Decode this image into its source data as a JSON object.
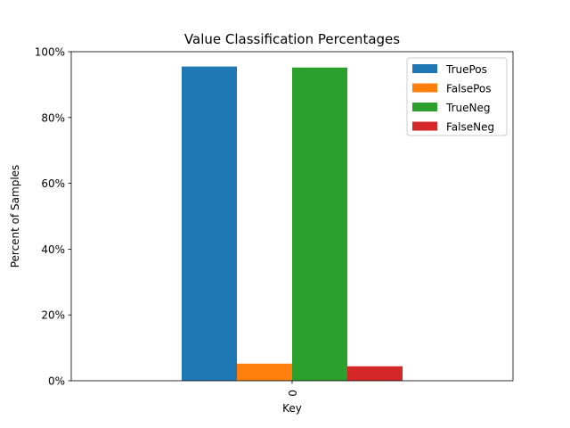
{
  "chart_data": {
    "type": "bar",
    "title": "Value Classification Percentages",
    "xlabel": "Key",
    "ylabel": "Percent of Samples",
    "categories": [
      "0"
    ],
    "ylim": [
      0,
      1
    ],
    "yticks": [
      0,
      0.2,
      0.4,
      0.6,
      0.8,
      1.0
    ],
    "ytick_labels": [
      "0%",
      "20%",
      "40%",
      "60%",
      "80%",
      "100%"
    ],
    "grid": false,
    "legend_position": "top-right",
    "series": [
      {
        "name": "TruePos",
        "color": "#1f77b4",
        "values": [
          0.955
        ]
      },
      {
        "name": "FalsePos",
        "color": "#ff7f0e",
        "values": [
          0.052
        ]
      },
      {
        "name": "TrueNeg",
        "color": "#2ca02c",
        "values": [
          0.952
        ]
      },
      {
        "name": "FalseNeg",
        "color": "#d62728",
        "values": [
          0.044
        ]
      }
    ]
  }
}
